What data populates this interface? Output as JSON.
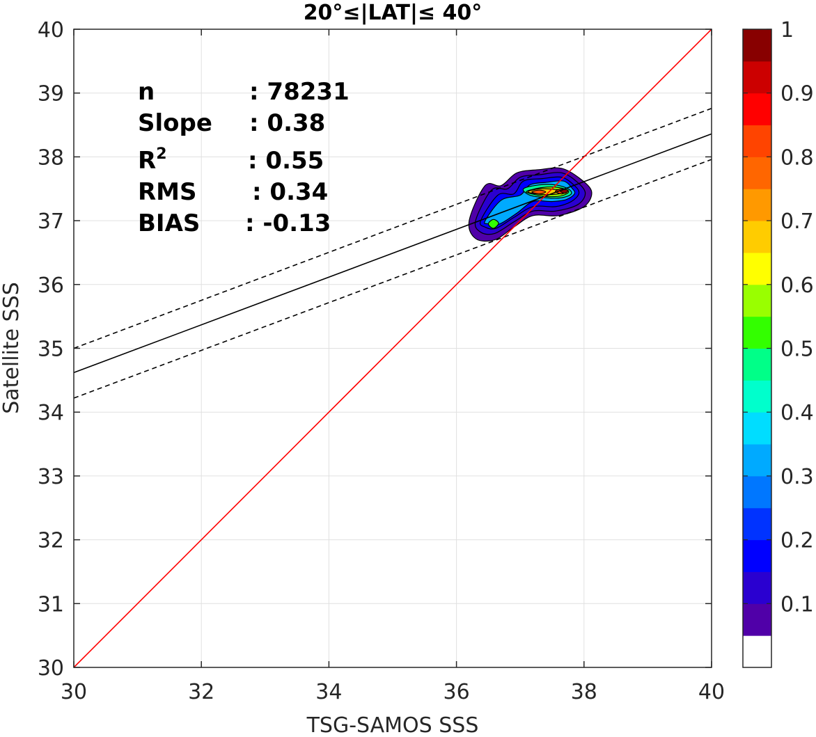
{
  "chart_data": {
    "type": "contour",
    "title": "20°≤|LAT|≤ 40°",
    "xlabel": "TSG-SAMOS SSS",
    "ylabel": "Satellite SSS",
    "xlim": [
      30,
      40
    ],
    "ylim": [
      30,
      40
    ],
    "x_ticks": [
      "30",
      "32",
      "34",
      "36",
      "38",
      "40"
    ],
    "y_ticks": [
      "30",
      "31",
      "32",
      "33",
      "34",
      "35",
      "36",
      "37",
      "38",
      "39",
      "40"
    ],
    "grid": true,
    "stats": [
      {
        "label": "n",
        "value": ": 78231"
      },
      {
        "label": "Slope",
        "value": ": 0.38"
      },
      {
        "label": "R",
        "sup": "2",
        "value": ": 0.55"
      },
      {
        "label": "RMS",
        "value": ": 0.34"
      },
      {
        "label": "BIAS",
        "value": ": -0.13"
      }
    ],
    "lines": {
      "identity": {
        "x": [
          30,
          40
        ],
        "y": [
          30,
          40
        ],
        "color": "#ff0000"
      },
      "fit": {
        "x": [
          30,
          40
        ],
        "y": [
          34.62,
          38.36
        ],
        "color": "#000000"
      },
      "fit_upper": {
        "x": [
          30,
          40
        ],
        "y": [
          35.0,
          38.76
        ],
        "color": "#000000",
        "style": "dashed"
      },
      "fit_lower": {
        "x": [
          30,
          40
        ],
        "y": [
          34.22,
          37.96
        ],
        "color": "#000000",
        "style": "dashed"
      }
    },
    "density_contours": [
      {
        "level": 0.05,
        "color": "#5000a8",
        "points": [
          [
            36.2,
            37.0
          ],
          [
            36.45,
            37.55
          ],
          [
            36.7,
            37.55
          ],
          [
            36.95,
            37.75
          ],
          [
            37.3,
            37.8
          ],
          [
            37.65,
            37.82
          ],
          [
            37.95,
            37.65
          ],
          [
            38.12,
            37.45
          ],
          [
            38.0,
            37.22
          ],
          [
            37.6,
            37.08
          ],
          [
            37.2,
            37.08
          ],
          [
            36.9,
            36.9
          ],
          [
            36.6,
            36.7
          ],
          [
            36.3,
            36.72
          ]
        ]
      },
      {
        "level": 0.1,
        "color": "#2a00d0",
        "points": [
          [
            36.3,
            37.0
          ],
          [
            36.55,
            37.48
          ],
          [
            36.8,
            37.5
          ],
          [
            37.0,
            37.68
          ],
          [
            37.3,
            37.72
          ],
          [
            37.65,
            37.75
          ],
          [
            37.9,
            37.6
          ],
          [
            38.02,
            37.43
          ],
          [
            37.9,
            37.25
          ],
          [
            37.55,
            37.15
          ],
          [
            37.2,
            37.15
          ],
          [
            36.9,
            36.98
          ],
          [
            36.6,
            36.8
          ],
          [
            36.38,
            36.82
          ]
        ]
      },
      {
        "level": 0.2,
        "color": "#0000ff",
        "points": [
          [
            36.38,
            37.0
          ],
          [
            36.65,
            37.4
          ],
          [
            36.9,
            37.42
          ],
          [
            37.05,
            37.62
          ],
          [
            37.35,
            37.66
          ],
          [
            37.65,
            37.68
          ],
          [
            37.85,
            37.55
          ],
          [
            37.92,
            37.43
          ],
          [
            37.8,
            37.3
          ],
          [
            37.55,
            37.22
          ],
          [
            37.2,
            37.22
          ],
          [
            36.9,
            37.05
          ],
          [
            36.62,
            36.88
          ],
          [
            36.45,
            36.9
          ]
        ]
      },
      {
        "level": 0.3,
        "color": "#00aaff",
        "points": [
          [
            36.45,
            37.0
          ],
          [
            36.7,
            37.32
          ],
          [
            37.0,
            37.4
          ],
          [
            37.15,
            37.56
          ],
          [
            37.4,
            37.6
          ],
          [
            37.68,
            37.62
          ],
          [
            37.82,
            37.5
          ],
          [
            37.85,
            37.42
          ],
          [
            37.72,
            37.33
          ],
          [
            37.5,
            37.3
          ],
          [
            37.2,
            37.3
          ],
          [
            36.95,
            37.12
          ],
          [
            36.68,
            36.95
          ],
          [
            36.5,
            36.95
          ]
        ]
      },
      {
        "level": 0.45,
        "color": "#00ff99",
        "points": [
          [
            37.05,
            37.5
          ],
          [
            37.3,
            37.56
          ],
          [
            37.55,
            37.56
          ],
          [
            37.75,
            37.5
          ],
          [
            37.8,
            37.42
          ],
          [
            37.65,
            37.36
          ],
          [
            37.4,
            37.36
          ],
          [
            37.15,
            37.4
          ]
        ]
      },
      {
        "level": 0.55,
        "color": "#33ff00",
        "points": [
          [
            36.5,
            36.95
          ],
          [
            36.58,
            37.02
          ],
          [
            36.66,
            36.96
          ],
          [
            36.58,
            36.88
          ]
        ]
      },
      {
        "level": 0.6,
        "color": "#99ff00",
        "points": [
          [
            37.1,
            37.46
          ],
          [
            37.35,
            37.52
          ],
          [
            37.6,
            37.52
          ],
          [
            37.76,
            37.46
          ],
          [
            37.65,
            37.39
          ],
          [
            37.4,
            37.38
          ],
          [
            37.18,
            37.42
          ]
        ]
      },
      {
        "level": 0.7,
        "color": "#ffcc00",
        "points": [
          [
            37.12,
            37.45
          ],
          [
            37.3,
            37.5
          ],
          [
            37.55,
            37.49
          ],
          [
            37.74,
            37.47
          ],
          [
            37.6,
            37.42
          ],
          [
            37.35,
            37.41
          ]
        ]
      },
      {
        "level": 0.8,
        "color": "#ff5500",
        "points": [
          [
            37.18,
            37.45
          ],
          [
            37.3,
            37.48
          ],
          [
            37.4,
            37.45
          ],
          [
            37.3,
            37.42
          ]
        ]
      },
      {
        "level": 0.85,
        "color": "#ff4400",
        "points": [
          [
            37.55,
            37.46
          ],
          [
            37.65,
            37.5
          ],
          [
            37.74,
            37.47
          ],
          [
            37.65,
            37.42
          ]
        ]
      },
      {
        "level": 1.0,
        "color": "#880000",
        "points": [
          [
            37.63,
            37.46
          ],
          [
            37.7,
            37.49
          ],
          [
            37.75,
            37.47
          ],
          [
            37.7,
            37.43
          ]
        ]
      }
    ],
    "colorbar": {
      "range": [
        0,
        1
      ],
      "tick_labels": [
        "0.1",
        "0.2",
        "0.3",
        "0.4",
        "0.5",
        "0.6",
        "0.7",
        "0.8",
        "0.9",
        "1"
      ],
      "tick_values": [
        0.1,
        0.2,
        0.3,
        0.4,
        0.5,
        0.6,
        0.7,
        0.8,
        0.9,
        1.0
      ],
      "colors": [
        "#ffffff",
        "#5000a8",
        "#2a00d0",
        "#0000ff",
        "#0033ff",
        "#0077ff",
        "#00aaff",
        "#00ddff",
        "#00ffcc",
        "#00ff88",
        "#33ff00",
        "#99ff00",
        "#ffff00",
        "#ffcc00",
        "#ff9900",
        "#ff6600",
        "#ff4400",
        "#ff0000",
        "#cc0000",
        "#880000"
      ]
    }
  }
}
